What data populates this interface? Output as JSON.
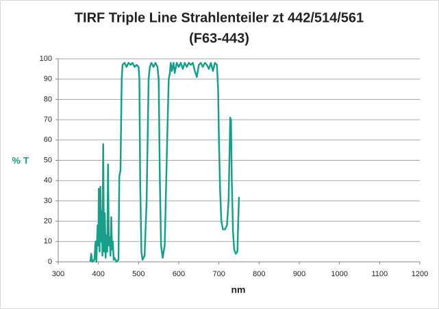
{
  "chart_data": {
    "type": "line",
    "title": [
      "TIRF Triple Line Strahlenteiler zt 442/514/561",
      "(F63-443)"
    ],
    "x_label": "nm",
    "y_label": "% T",
    "xlim": [
      300,
      1200
    ],
    "xticks": [
      300,
      400,
      500,
      600,
      700,
      800,
      900,
      1000,
      1100,
      1200
    ],
    "ylim": [
      0,
      100
    ],
    "yticks": [
      0,
      10,
      20,
      30,
      40,
      50,
      60,
      70,
      80,
      90,
      100
    ],
    "grid": true,
    "series": [
      {
        "name": "% T",
        "color": "#1a9e8c",
        "x": [
          380,
          382,
          385,
          390,
          393,
          395,
          398,
          400,
          401,
          403,
          405,
          407,
          409,
          410,
          412,
          414,
          416,
          418,
          420,
          422,
          424,
          426,
          428,
          430,
          432,
          434,
          436,
          438,
          440,
          445,
          450,
          452,
          455,
          458,
          460,
          465,
          470,
          475,
          480,
          485,
          490,
          495,
          500,
          502,
          504,
          507,
          510,
          515,
          520,
          525,
          528,
          532,
          537,
          542,
          547,
          550,
          553,
          556,
          560,
          565,
          570,
          575,
          578,
          580,
          583,
          587,
          590,
          595,
          600,
          605,
          610,
          615,
          620,
          625,
          630,
          635,
          640,
          645,
          650,
          655,
          660,
          665,
          670,
          675,
          680,
          685,
          690,
          695,
          698,
          700,
          703,
          706,
          710,
          715,
          720,
          724,
          727,
          728,
          730,
          732,
          735,
          738,
          742,
          746,
          748,
          750
        ],
        "values": [
          0,
          4,
          0,
          1,
          10,
          0,
          18,
          8,
          36,
          5,
          37,
          10,
          25,
          3,
          58,
          5,
          24,
          2,
          13,
          5,
          48,
          8,
          12,
          3,
          22,
          6,
          10,
          1,
          2,
          0,
          1,
          42,
          45,
          90,
          97,
          98,
          96,
          98,
          97,
          98,
          96,
          97,
          96,
          90,
          40,
          5,
          1,
          3,
          30,
          90,
          96,
          98,
          96,
          98,
          96,
          90,
          40,
          8,
          2,
          8,
          50,
          90,
          93,
          98,
          94,
          98,
          93,
          98,
          96,
          98,
          95,
          98,
          96,
          98,
          97,
          98,
          94,
          91,
          97,
          98,
          96,
          98,
          97,
          95,
          98,
          94,
          98,
          97,
          85,
          60,
          35,
          20,
          16,
          16,
          18,
          30,
          60,
          71,
          70,
          40,
          15,
          6,
          4,
          5,
          20,
          32
        ]
      }
    ]
  }
}
